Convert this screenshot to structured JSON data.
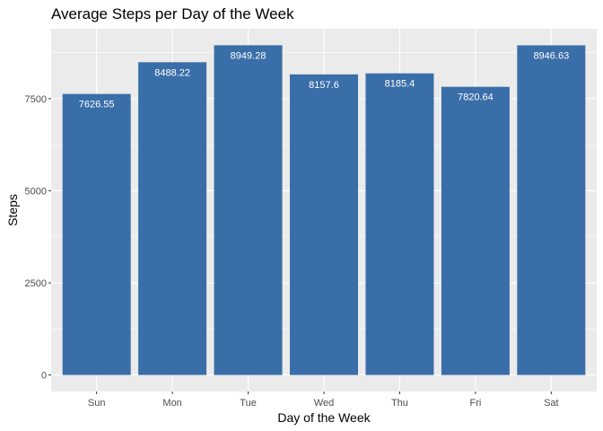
{
  "chart_data": {
    "type": "bar",
    "title": "Average Steps per Day of the Week",
    "xlabel": "Day of the Week",
    "ylabel": "Steps",
    "categories": [
      "Sun",
      "Mon",
      "Tue",
      "Wed",
      "Thu",
      "Fri",
      "Sat"
    ],
    "values": [
      7626.55,
      8488.22,
      8949.28,
      8157.6,
      8185.4,
      7820.64,
      8946.63
    ],
    "value_labels": [
      "7626.55",
      "8488.22",
      "8949.28",
      "8157.6",
      "8185.4",
      "7820.64",
      "8946.63"
    ],
    "yticks": [
      0,
      2500,
      5000,
      7500
    ],
    "ylim": [
      -447.46,
      9396.74
    ],
    "grid": true,
    "legend": "none",
    "colors": {
      "bar": "#3a6ea8",
      "panel": "#ebebeb",
      "grid": "#ffffff"
    }
  }
}
